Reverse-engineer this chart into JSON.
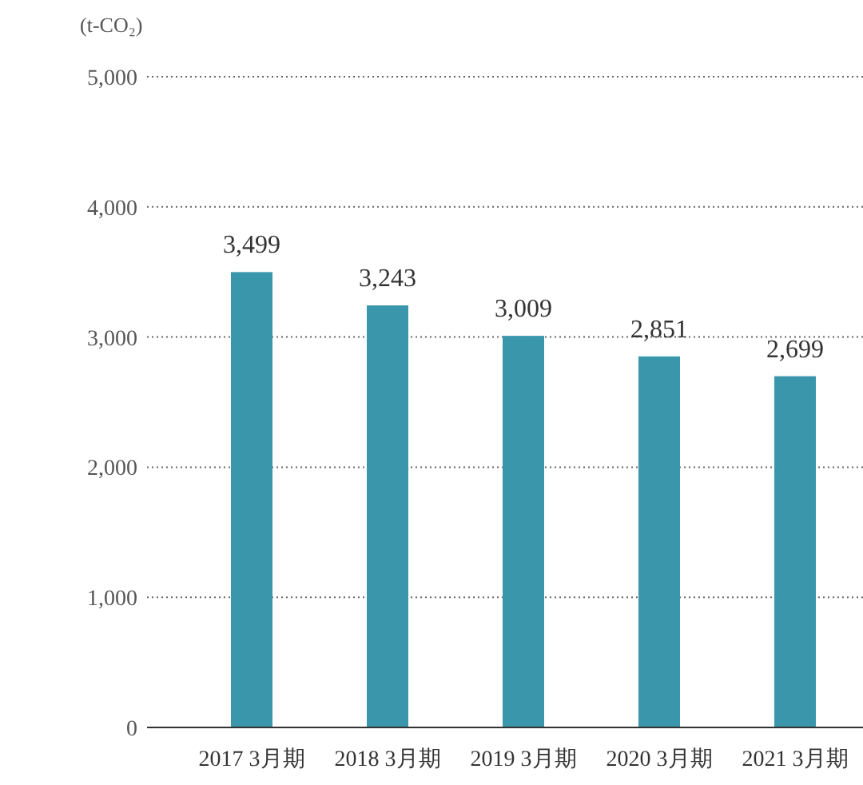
{
  "chart_data": {
    "type": "bar",
    "ylabel": "(t-CO₂)",
    "categories": [
      "2017 3月期",
      "2018 3月期",
      "2019 3月期",
      "2020 3月期",
      "2021 3月期"
    ],
    "values": [
      3499,
      3243,
      3009,
      2851,
      2699
    ],
    "color": "#3a97ab",
    "ylim": [
      0,
      5000
    ],
    "yticks": [
      {
        "value": 0,
        "label": "0"
      },
      {
        "value": 1000,
        "label": "1,000"
      },
      {
        "value": 2000,
        "label": "2,000"
      },
      {
        "value": 3000,
        "label": "3,000"
      },
      {
        "value": 4000,
        "label": "4,000"
      },
      {
        "value": 5000,
        "label": "5,000"
      }
    ],
    "value_labels": [
      "3,499",
      "3,243",
      "3,009",
      "2,851",
      "2,699"
    ],
    "grid": "y"
  }
}
